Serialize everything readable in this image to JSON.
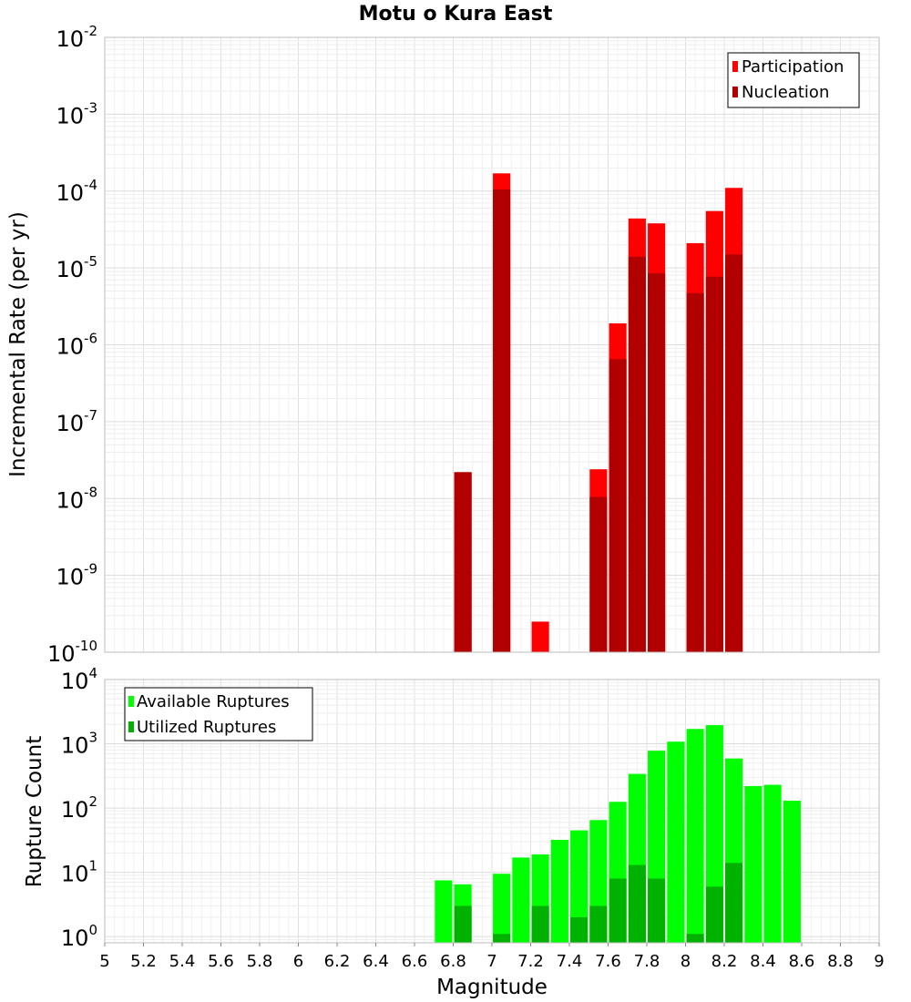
{
  "chart_data": [
    {
      "type": "bar",
      "title": "Motu o Kura East",
      "xlabel": "",
      "ylabel": "Incremental Rate (per yr)",
      "xlim": [
        5,
        9
      ],
      "ylim": [
        1e-10,
        0.01
      ],
      "yscale": "log",
      "grid": true,
      "legend_position": "top-right",
      "bar_width": 0.09,
      "series": [
        {
          "name": "Participation",
          "color": "#ff0000",
          "x": [
            6.85,
            7.05,
            7.25,
            7.55,
            7.65,
            7.75,
            7.85,
            8.05,
            8.15,
            8.25
          ],
          "values": [
            2.2e-08,
            0.00017,
            2.5e-10,
            2.4e-08,
            1.9e-06,
            4.4e-05,
            3.8e-05,
            2.1e-05,
            5.5e-05,
            0.00011
          ]
        },
        {
          "name": "Nucleation",
          "color": "#b20000",
          "x": [
            6.85,
            7.05,
            7.55,
            7.65,
            7.75,
            7.85,
            8.05,
            8.15,
            8.25
          ],
          "values": [
            2.2e-08,
            0.000105,
            1.05e-08,
            6.5e-07,
            1.4e-05,
            8.5e-06,
            4.7e-06,
            7.7e-06,
            1.5e-05
          ]
        }
      ],
      "y_ticks": [
        {
          "base": "10",
          "exp": "-2",
          "value": 0.01
        },
        {
          "base": "10",
          "exp": "-3",
          "value": 0.001
        },
        {
          "base": "10",
          "exp": "-4",
          "value": 0.0001
        },
        {
          "base": "10",
          "exp": "-5",
          "value": 1e-05
        },
        {
          "base": "10",
          "exp": "-6",
          "value": 1e-06
        },
        {
          "base": "10",
          "exp": "-7",
          "value": 1e-07
        },
        {
          "base": "10",
          "exp": "-8",
          "value": 1e-08
        },
        {
          "base": "10",
          "exp": "-9",
          "value": 1e-09
        },
        {
          "base": "10",
          "exp": "-10",
          "value": 1e-10
        }
      ]
    },
    {
      "type": "bar",
      "title": "",
      "xlabel": "Magnitude",
      "ylabel": "Rupture Count",
      "xlim": [
        5,
        9
      ],
      "ylim": [
        0.8,
        10000
      ],
      "yscale": "log",
      "grid": true,
      "legend_position": "top-left",
      "bar_width": 0.09,
      "series": [
        {
          "name": "Available Ruptures",
          "color": "#00ff00",
          "x": [
            6.75,
            6.85,
            7.05,
            7.15,
            7.25,
            7.35,
            7.45,
            7.55,
            7.65,
            7.75,
            7.85,
            7.95,
            8.05,
            8.15,
            8.25,
            8.35,
            8.45,
            8.55
          ],
          "values": [
            7.5,
            6.5,
            9.5,
            17,
            19,
            32,
            45,
            65,
            125,
            340,
            780,
            1080,
            1700,
            1950,
            590,
            220,
            230,
            130
          ]
        },
        {
          "name": "Utilized Ruptures",
          "color": "#00b200",
          "x": [
            6.85,
            7.05,
            7.25,
            7.45,
            7.55,
            7.65,
            7.75,
            7.85,
            8.05,
            8.15,
            8.25
          ],
          "values": [
            3,
            1.1,
            3,
            2,
            3,
            8,
            13,
            8,
            1.1,
            6,
            14
          ]
        }
      ],
      "y_ticks": [
        {
          "base": "10",
          "exp": "4",
          "value": 10000
        },
        {
          "base": "10",
          "exp": "3",
          "value": 1000
        },
        {
          "base": "10",
          "exp": "2",
          "value": 100
        },
        {
          "base": "10",
          "exp": "1",
          "value": 10
        },
        {
          "base": "10",
          "exp": "0",
          "value": 1
        }
      ],
      "x_ticks": [
        "5",
        "5.2",
        "5.4",
        "5.6",
        "5.8",
        "6",
        "6.2",
        "6.4",
        "6.6",
        "6.8",
        "7",
        "7.2",
        "7.4",
        "7.6",
        "7.8",
        "8",
        "8.2",
        "8.4",
        "8.6",
        "8.8",
        "9"
      ]
    }
  ]
}
